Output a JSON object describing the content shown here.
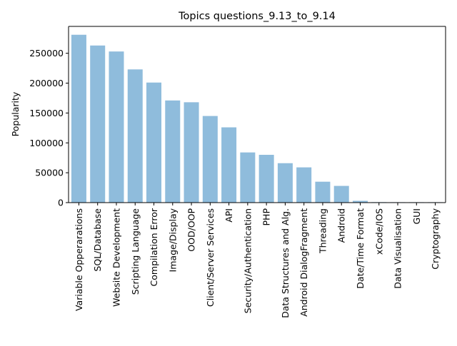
{
  "chart_data": {
    "type": "bar",
    "title": "Topics questions_9.13_to_9.14",
    "xlabel": "",
    "ylabel": "Popularity",
    "categories": [
      "Variable Opperarations",
      "SQL/Database",
      "Website Development",
      "Scripting Language",
      "Compilation Error",
      "Image/Display",
      "OOD/OOP",
      "Client/Server Services",
      "API",
      "Security/Authentication",
      "PHP",
      "Data Structures and Alg.",
      "Android DialogFragment",
      "Threading",
      "Android",
      "Date/Time Format",
      "xCode/IOS",
      "Data Visualisation",
      "GUI",
      "Cryptography"
    ],
    "values": [
      281000,
      263000,
      253000,
      223000,
      201000,
      171000,
      168000,
      145000,
      126000,
      84000,
      80000,
      66000,
      59000,
      35000,
      28000,
      3000,
      800,
      600,
      600,
      400
    ],
    "yticks": [
      0,
      50000,
      100000,
      150000,
      200000,
      250000
    ],
    "ytick_labels": [
      "0",
      "50000",
      "100000",
      "150000",
      "200000",
      "250000"
    ],
    "ylim": [
      0,
      295000
    ],
    "grid": false,
    "bar_color": "#8fbcdc",
    "axis_color": "#000000"
  }
}
